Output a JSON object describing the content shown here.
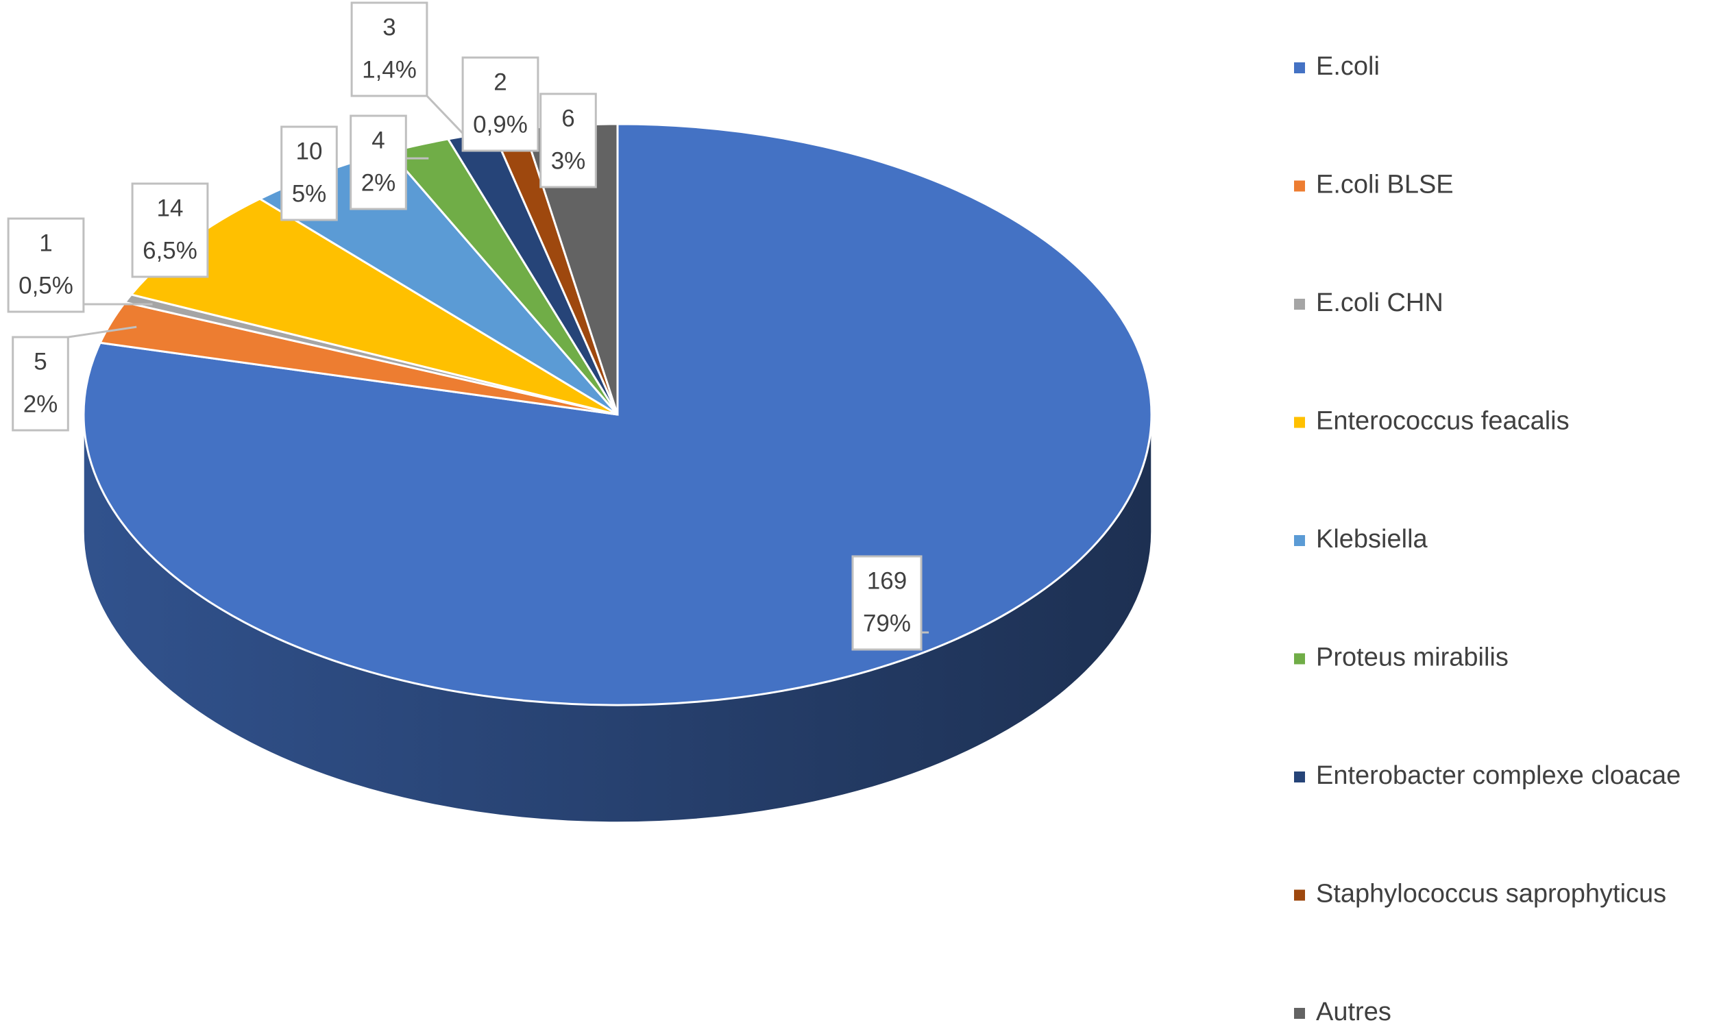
{
  "chart_data": {
    "type": "pie",
    "categories": [
      "E.coli",
      "E.coli BLSE",
      "E.coli CHN",
      "Enterococcus feacalis",
      "Klebsiella",
      "Proteus mirabilis",
      "Enterobacter complexe cloacae",
      "Staphylococcus saprophyticus",
      "Autres"
    ],
    "values": [
      169,
      5,
      1,
      14,
      10,
      4,
      3,
      2,
      6
    ],
    "percents": [
      79,
      2,
      0.5,
      6.5,
      5,
      2,
      1.4,
      0.9,
      3
    ],
    "percent_labels": [
      "79%",
      "2%",
      "0,5%",
      "6,5%",
      "5%",
      "2%",
      "1,4%",
      "0,9%",
      "3%"
    ],
    "colors": [
      "#4472c4",
      "#ed7d31",
      "#a5a5a5",
      "#ffc000",
      "#5b9bd5",
      "#70ad47",
      "#264478",
      "#9e480e",
      "#636363"
    ],
    "legend": "right"
  }
}
